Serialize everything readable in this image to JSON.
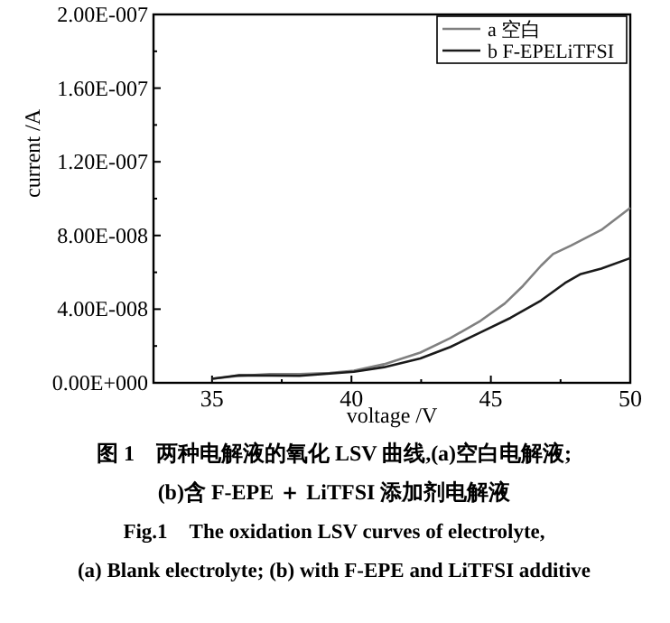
{
  "chart_data": {
    "type": "line",
    "xlabel": "voltage /V",
    "ylabel": "current /A",
    "xlim": [
      32.9,
      50
    ],
    "xticks": [
      35,
      {
        "value": 37.5,
        "label": null
      },
      40,
      {
        "value": 42.5,
        "label": null
      },
      45,
      {
        "value": 47.5,
        "label": null
      },
      50
    ],
    "ylim": [
      0,
      2e-07
    ],
    "yticks": [
      {
        "value": 0,
        "label": "0.00E+000"
      },
      {
        "value": 2e-08,
        "label": null
      },
      {
        "value": 4e-08,
        "label": "4.00E-008"
      },
      {
        "value": 6e-08,
        "label": null
      },
      {
        "value": 8e-08,
        "label": "8.00E-008"
      },
      {
        "value": 1e-07,
        "label": null
      },
      {
        "value": 1.2e-07,
        "label": "1.20E-007"
      },
      {
        "value": 1.4e-07,
        "label": null
      },
      {
        "value": 1.6e-07,
        "label": "1.60E-007"
      },
      {
        "value": 1.8e-07,
        "label": null
      },
      {
        "value": 2e-07,
        "label": "2.00E-007"
      }
    ],
    "grid": false,
    "legend": "top right",
    "line_style": "solid",
    "marker": "none",
    "x": [
      35,
      35.97,
      37.06,
      38.14,
      39.22,
      40.09,
      41.17,
      42.47,
      43.55,
      44.63,
      45.5,
      46.15,
      46.8,
      47.23,
      47.88,
      48.96,
      50
    ],
    "series": [
      {
        "name": "a 空白",
        "color": "#808080",
        "values": [
          2.2e-09,
          3.8e-09,
          4.7e-09,
          4.7e-09,
          5.4e-09,
          6.6e-09,
          1.01e-08,
          1.64e-08,
          2.43e-08,
          3.37e-08,
          4.31e-08,
          5.26e-08,
          6.36e-08,
          6.99e-08,
          7.46e-08,
          8.3e-08,
          9.5e-08
        ]
      },
      {
        "name": "b F-EPELiTFSI",
        "color": "#1a1a1a",
        "x": [
          35,
          35.97,
          38.14,
          40.09,
          41.17,
          42.47,
          43.55,
          44.63,
          45.71,
          46.8,
          47.66,
          48.2,
          48.96,
          50
        ],
        "values": [
          2.2e-09,
          4.1e-09,
          3.8e-09,
          6e-09,
          8.5e-09,
          1.32e-08,
          1.95e-08,
          2.74e-08,
          3.53e-08,
          4.47e-08,
          5.42e-08,
          5.89e-08,
          6.2e-08,
          6.77e-08
        ]
      }
    ],
    "annotations": [
      "图 1　两种电解液的氧化 LSV 曲线,(a)空白电解液;",
      "(b)含 F-EPE ＋ LiTFSI 添加剂电解液",
      "Fig.1　The oxidation LSV curves of electrolyte,",
      "(a) Blank electrolyte; (b) with F-EPE and LiTFSI additive"
    ]
  }
}
